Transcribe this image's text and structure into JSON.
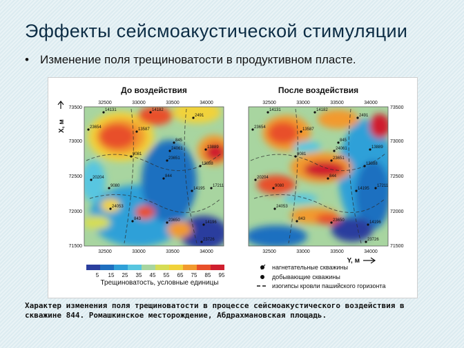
{
  "slide": {
    "title": "Эффекты сейсмоакустической стимуляции",
    "bullet": "Изменение поля трещиноватости в продуктивном пласте.",
    "caption_line1": "Характер изменения поля трещиноватости в процессе сейсмоакустического воздействия в",
    "caption_line2": "скважине 844. Ромашкинское месторождение, Абдрахмановская площадь."
  },
  "maps": {
    "left_title": "До воздействия",
    "right_title": "После воздействия",
    "axis_x_label": "X, м",
    "axis_y_label": "Y, м",
    "top_ticks": [
      "32500",
      "33000",
      "33500",
      "34000"
    ],
    "bottom_ticks": [
      "32500",
      "33000",
      "33500",
      "34000"
    ],
    "left_ticks": [
      "73500",
      "73000",
      "72500",
      "72000",
      "71500"
    ],
    "right_ticks": [
      "73500",
      "73000",
      "72500",
      "72000",
      "71500"
    ],
    "wells_left": [
      "14131",
      "14182",
      "2491",
      "23654",
      "13587",
      "845",
      "24061",
      "13889",
      "9081",
      "23651",
      "13888",
      "844",
      "20204",
      "9080",
      "14195",
      "17211",
      "24053",
      "843",
      "23650",
      "14196",
      "23726"
    ],
    "wells_right": [
      "14131",
      "14182",
      "2491",
      "23654",
      "13587",
      "845",
      "24061",
      "13889",
      "9081",
      "23651",
      "13888",
      "844",
      "20204",
      "9080",
      "14195",
      "17211",
      "24053",
      "843",
      "23650",
      "14196",
      "23726"
    ]
  },
  "colorbar": {
    "ticks": [
      "5",
      "15",
      "25",
      "35",
      "45",
      "55",
      "65",
      "75",
      "85",
      "95"
    ],
    "colors": [
      "#2a3e9e",
      "#1f6fc0",
      "#2fa0d8",
      "#58c6e0",
      "#a8d5a0",
      "#d6dd55",
      "#f1d23a",
      "#f29a2e",
      "#e8502a",
      "#cf1f2e"
    ],
    "label": "Трещиноватость, условные единицы"
  },
  "legend": {
    "injection": "нагнетательные скважины",
    "production": "добывающие скважины",
    "isohypse": "изогипсы кровли пашийского горизонта"
  }
}
